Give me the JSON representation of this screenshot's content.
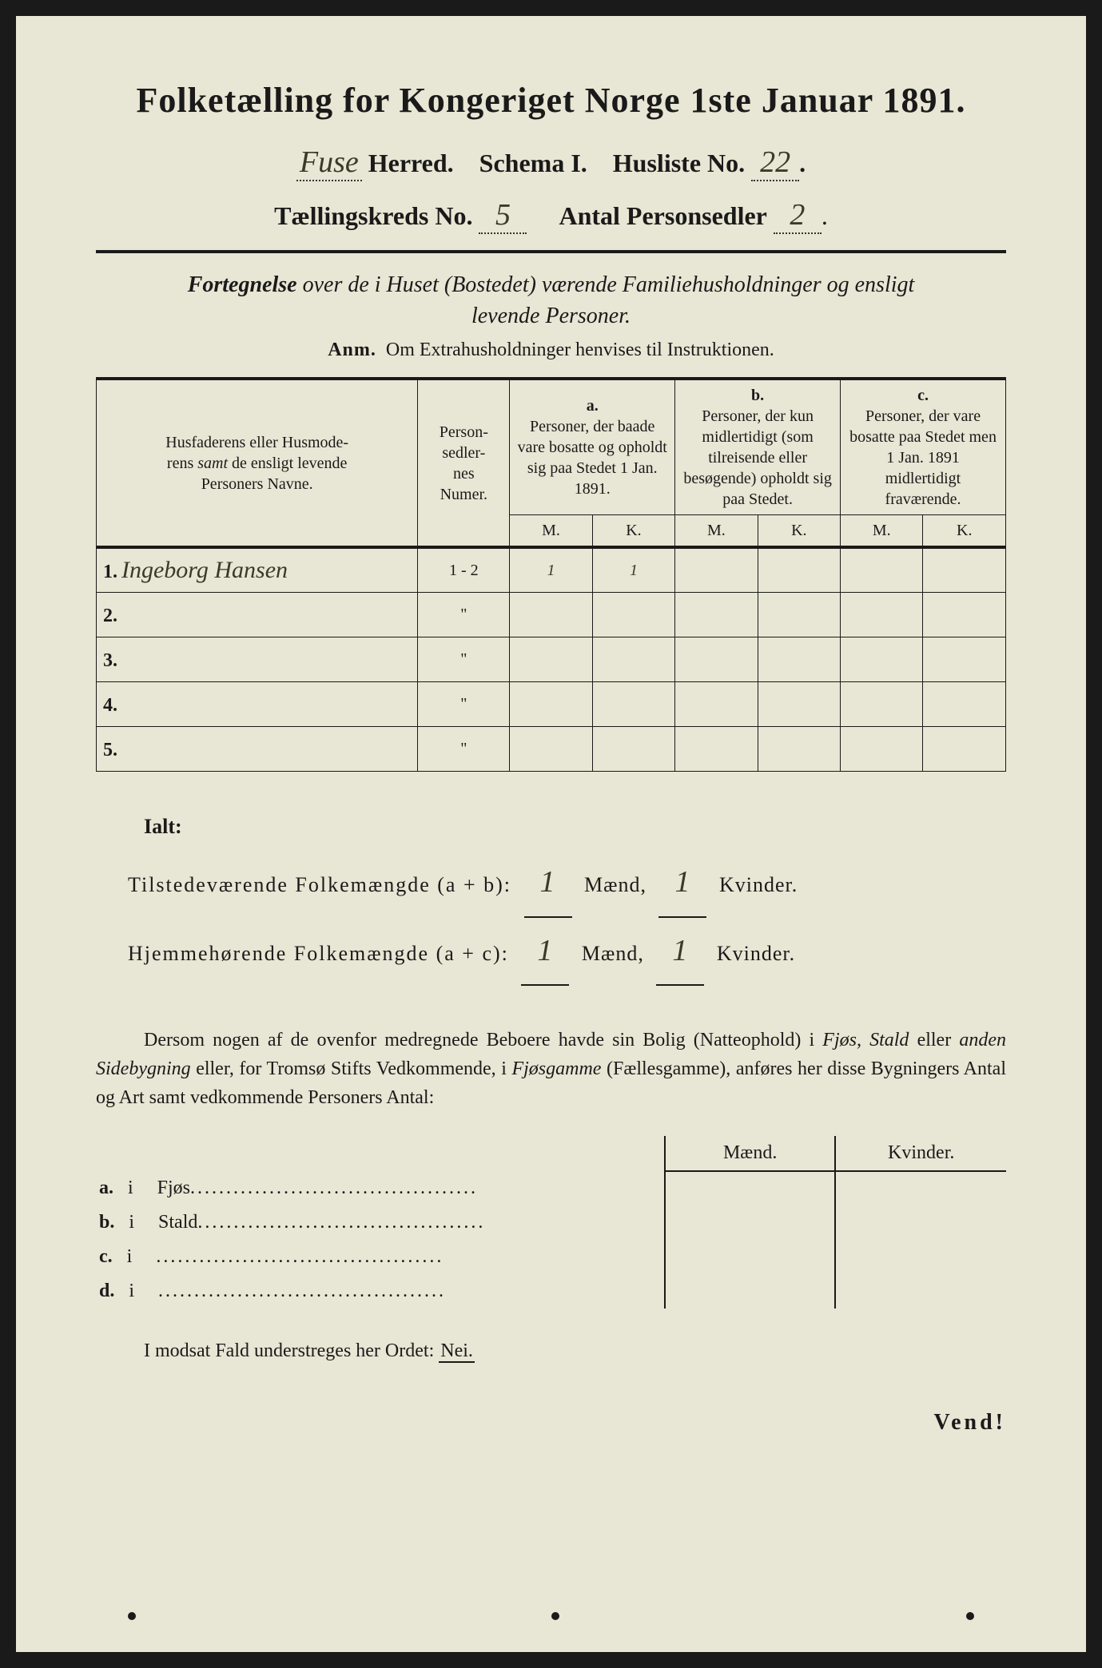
{
  "title": "Folketælling for Kongeriget Norge 1ste Januar 1891.",
  "header": {
    "herred_handwritten": "Fuse",
    "herred_label": "Herred.",
    "schema_label": "Schema I.",
    "husliste_label": "Husliste No.",
    "husliste_no": "22",
    "kreds_label": "Tællingskreds No.",
    "kreds_no": "5",
    "antal_label": "Antal Personsedler",
    "antal_no": "2"
  },
  "subtitle": "Fortegnelse over de i Huset (Bostedet) værende Familiehusholdninger og ensligt levende Personer.",
  "anm_label": "Anm.",
  "anm_text": "Om Extrahusholdninger henvises til Instruktionen.",
  "table_headers": {
    "col1": "Husfaderens eller Husmoderens samt de ensligt levende Personers Navne.",
    "col2": "Personsedlernes Numer.",
    "col_a_label": "a.",
    "col_a": "Personer, der baade vare bosatte og opholdt sig paa Stedet 1 Jan. 1891.",
    "col_b_label": "b.",
    "col_b": "Personer, der kun midlertidigt (som tilreisende eller besøgende) opholdt sig paa Stedet.",
    "col_c_label": "c.",
    "col_c": "Personer, der vare bosatte paa Stedet men 1 Jan. 1891 midlertidigt fraværende.",
    "M": "M.",
    "K": "K."
  },
  "rows": [
    {
      "num": "1.",
      "name": "Ingeborg Hansen",
      "person_num": "1 - 2",
      "a_m": "1",
      "a_k": "1",
      "b_m": "",
      "b_k": "",
      "c_m": "",
      "c_k": ""
    },
    {
      "num": "2.",
      "name": "",
      "person_num": "\"",
      "a_m": "",
      "a_k": "",
      "b_m": "",
      "b_k": "",
      "c_m": "",
      "c_k": ""
    },
    {
      "num": "3.",
      "name": "",
      "person_num": "\"",
      "a_m": "",
      "a_k": "",
      "b_m": "",
      "b_k": "",
      "c_m": "",
      "c_k": ""
    },
    {
      "num": "4.",
      "name": "",
      "person_num": "\"",
      "a_m": "",
      "a_k": "",
      "b_m": "",
      "b_k": "",
      "c_m": "",
      "c_k": ""
    },
    {
      "num": "5.",
      "name": "",
      "person_num": "\"",
      "a_m": "",
      "a_k": "",
      "b_m": "",
      "b_k": "",
      "c_m": "",
      "c_k": ""
    }
  ],
  "totals": {
    "ialt": "Ialt:",
    "line1_label": "Tilstedeværende Folkemængde (a + b):",
    "line1_m": "1",
    "line1_k": "1",
    "line2_label": "Hjemmehørende Folkemængde (a + c):",
    "line2_m": "1",
    "line2_k": "1",
    "maend": "Mænd,",
    "kvinder": "Kvinder."
  },
  "paragraph": "Dersom nogen af de ovenfor medregnede Beboere havde sin Bolig (Natteophold) i Fjøs, Stald eller anden Sidebygning eller, for Tromsø Stifts Vedkommende, i Fjøsgamme (Fællesgamme), anføres her disse Bygningers Antal og Art samt vedkommende Personers Antal:",
  "buildings": {
    "maend": "Mænd.",
    "kvinder": "Kvinder.",
    "rows": [
      {
        "letter": "a.",
        "i": "i",
        "label": "Fjøs"
      },
      {
        "letter": "b.",
        "i": "i",
        "label": "Stald"
      },
      {
        "letter": "c.",
        "i": "i",
        "label": ""
      },
      {
        "letter": "d.",
        "i": "i",
        "label": ""
      }
    ]
  },
  "nei_line": "I modsat Fald understreges her Ordet:",
  "nei": "Nei.",
  "vend": "Vend!",
  "colors": {
    "paper": "#e8e6d4",
    "ink": "#1a1a1a",
    "handwriting": "#3a3a2a"
  }
}
